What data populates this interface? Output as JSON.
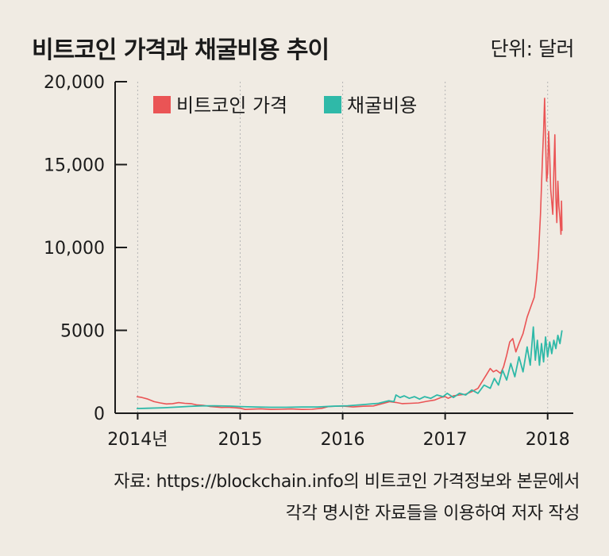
{
  "title": "비트코인 가격과 채굴비용 추이",
  "unit_label": "단위: 달러",
  "source": {
    "line1": "자료: https://blockchain.info의 비트코인 가격정보와 본문에서",
    "line2": "각각 명시한 자료들을 이용하여 저자 작성"
  },
  "chart_data": {
    "type": "line",
    "title": "비트코인 가격과 채굴비용 추이",
    "xlabel": "",
    "ylabel": "",
    "x_ticks": [
      "2014년",
      "2015",
      "2016",
      "2017",
      "2018"
    ],
    "y_ticks": [
      "0",
      "5000",
      "10,000",
      "15,000",
      "20,000"
    ],
    "y_tick_values": [
      0,
      5000,
      10000,
      15000,
      20000
    ],
    "ylim": [
      0,
      20000
    ],
    "xlim": [
      2013.78,
      2018.25
    ],
    "grid": "vertical-dotted",
    "legend_placement": "top-left",
    "series": [
      {
        "name": "비트코인 가격",
        "color": "#ea5455",
        "points": [
          [
            2013.99,
            1000
          ],
          [
            2014.04,
            950
          ],
          [
            2014.1,
            850
          ],
          [
            2014.16,
            700
          ],
          [
            2014.22,
            620
          ],
          [
            2014.28,
            560
          ],
          [
            2014.34,
            580
          ],
          [
            2014.4,
            640
          ],
          [
            2014.46,
            600
          ],
          [
            2014.52,
            580
          ],
          [
            2014.58,
            500
          ],
          [
            2014.64,
            480
          ],
          [
            2014.7,
            410
          ],
          [
            2014.76,
            380
          ],
          [
            2014.82,
            350
          ],
          [
            2014.88,
            360
          ],
          [
            2014.95,
            330
          ],
          [
            2015.0,
            300
          ],
          [
            2015.05,
            230
          ],
          [
            2015.12,
            250
          ],
          [
            2015.2,
            270
          ],
          [
            2015.3,
            230
          ],
          [
            2015.4,
            240
          ],
          [
            2015.5,
            260
          ],
          [
            2015.6,
            230
          ],
          [
            2015.7,
            240
          ],
          [
            2015.8,
            300
          ],
          [
            2015.86,
            400
          ],
          [
            2015.92,
            420
          ],
          [
            2016.0,
            430
          ],
          [
            2016.1,
            380
          ],
          [
            2016.2,
            420
          ],
          [
            2016.3,
            440
          ],
          [
            2016.4,
            600
          ],
          [
            2016.46,
            700
          ],
          [
            2016.52,
            650
          ],
          [
            2016.58,
            580
          ],
          [
            2016.66,
            600
          ],
          [
            2016.74,
            620
          ],
          [
            2016.82,
            720
          ],
          [
            2016.9,
            800
          ],
          [
            2016.96,
            950
          ],
          [
            2017.0,
            1000
          ],
          [
            2017.03,
            900
          ],
          [
            2017.08,
            1050
          ],
          [
            2017.14,
            1100
          ],
          [
            2017.2,
            1150
          ],
          [
            2017.26,
            1300
          ],
          [
            2017.32,
            1500
          ],
          [
            2017.36,
            1900
          ],
          [
            2017.4,
            2300
          ],
          [
            2017.44,
            2700
          ],
          [
            2017.47,
            2500
          ],
          [
            2017.5,
            2600
          ],
          [
            2017.54,
            2400
          ],
          [
            2017.57,
            2800
          ],
          [
            2017.6,
            3500
          ],
          [
            2017.63,
            4300
          ],
          [
            2017.66,
            4500
          ],
          [
            2017.69,
            3700
          ],
          [
            2017.72,
            4200
          ],
          [
            2017.76,
            4800
          ],
          [
            2017.8,
            5800
          ],
          [
            2017.84,
            6500
          ],
          [
            2017.87,
            7000
          ],
          [
            2017.89,
            8000
          ],
          [
            2017.91,
            9500
          ],
          [
            2017.93,
            12000
          ],
          [
            2017.95,
            15500
          ],
          [
            2017.96,
            17000
          ],
          [
            2017.97,
            19000
          ],
          [
            2017.98,
            16500
          ],
          [
            2017.99,
            14000
          ],
          [
            2018.0,
            14500
          ],
          [
            2018.01,
            17000
          ],
          [
            2018.02,
            15500
          ],
          [
            2018.03,
            13500
          ],
          [
            2018.05,
            12000
          ],
          [
            2018.06,
            14500
          ],
          [
            2018.07,
            16800
          ],
          [
            2018.08,
            13000
          ],
          [
            2018.09,
            11500
          ],
          [
            2018.1,
            14000
          ],
          [
            2018.11,
            12500
          ],
          [
            2018.12,
            11800
          ],
          [
            2018.13,
            10800
          ],
          [
            2018.135,
            12800
          ],
          [
            2018.14,
            11000
          ]
        ]
      },
      {
        "name": "채굴비용",
        "color": "#2fb9a8",
        "points": [
          [
            2013.99,
            280
          ],
          [
            2014.1,
            300
          ],
          [
            2014.25,
            330
          ],
          [
            2014.4,
            380
          ],
          [
            2014.5,
            410
          ],
          [
            2014.6,
            440
          ],
          [
            2014.75,
            450
          ],
          [
            2014.9,
            430
          ],
          [
            2015.0,
            400
          ],
          [
            2015.15,
            380
          ],
          [
            2015.3,
            360
          ],
          [
            2015.45,
            360
          ],
          [
            2015.6,
            380
          ],
          [
            2015.75,
            380
          ],
          [
            2015.9,
            420
          ],
          [
            2016.05,
            450
          ],
          [
            2016.2,
            520
          ],
          [
            2016.35,
            600
          ],
          [
            2016.45,
            750
          ],
          [
            2016.5,
            700
          ],
          [
            2016.52,
            1100
          ],
          [
            2016.56,
            950
          ],
          [
            2016.6,
            1050
          ],
          [
            2016.65,
            900
          ],
          [
            2016.7,
            1000
          ],
          [
            2016.75,
            850
          ],
          [
            2016.8,
            1000
          ],
          [
            2016.86,
            900
          ],
          [
            2016.92,
            1100
          ],
          [
            2016.98,
            1000
          ],
          [
            2017.02,
            1200
          ],
          [
            2017.08,
            950
          ],
          [
            2017.14,
            1200
          ],
          [
            2017.2,
            1100
          ],
          [
            2017.26,
            1400
          ],
          [
            2017.32,
            1200
          ],
          [
            2017.38,
            1700
          ],
          [
            2017.44,
            1500
          ],
          [
            2017.48,
            2100
          ],
          [
            2017.52,
            1700
          ],
          [
            2017.56,
            2600
          ],
          [
            2017.6,
            2000
          ],
          [
            2017.64,
            3000
          ],
          [
            2017.68,
            2200
          ],
          [
            2017.72,
            3400
          ],
          [
            2017.76,
            2500
          ],
          [
            2017.8,
            4000
          ],
          [
            2017.83,
            2900
          ],
          [
            2017.86,
            5200
          ],
          [
            2017.88,
            3200
          ],
          [
            2017.9,
            4400
          ],
          [
            2017.92,
            2900
          ],
          [
            2017.94,
            4200
          ],
          [
            2017.96,
            3100
          ],
          [
            2017.98,
            4600
          ],
          [
            2018.0,
            3400
          ],
          [
            2018.02,
            4300
          ],
          [
            2018.04,
            3600
          ],
          [
            2018.06,
            4400
          ],
          [
            2018.08,
            3900
          ],
          [
            2018.1,
            4700
          ],
          [
            2018.12,
            4200
          ],
          [
            2018.14,
            5000
          ]
        ]
      }
    ]
  }
}
